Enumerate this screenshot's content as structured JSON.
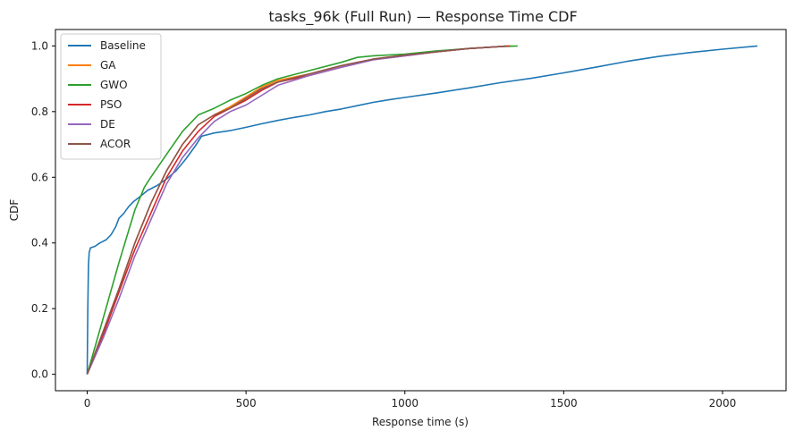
{
  "chart_data": {
    "type": "line",
    "title": "tasks_96k (Full Run) — Response Time CDF",
    "xlabel": "Response time (s)",
    "ylabel": "CDF",
    "xlim": [
      -100,
      2200
    ],
    "ylim": [
      -0.05,
      1.05
    ],
    "xticks": [
      0,
      500,
      1000,
      1500,
      2000
    ],
    "yticks": [
      0.0,
      0.2,
      0.4,
      0.6,
      0.8,
      1.0
    ],
    "xtick_labels": [
      "0",
      "500",
      "1000",
      "1500",
      "2000"
    ],
    "ytick_labels": [
      "0.0",
      "0.2",
      "0.4",
      "0.6",
      "0.8",
      "1.0"
    ],
    "grid": false,
    "legend_position": "upper-left",
    "series": [
      {
        "name": "Baseline",
        "color": "#1f77b4",
        "points": [
          [
            0,
            0.0
          ],
          [
            2,
            0.2
          ],
          [
            4,
            0.33
          ],
          [
            6,
            0.37
          ],
          [
            10,
            0.385
          ],
          [
            25,
            0.39
          ],
          [
            40,
            0.4
          ],
          [
            60,
            0.41
          ],
          [
            75,
            0.425
          ],
          [
            90,
            0.45
          ],
          [
            100,
            0.475
          ],
          [
            115,
            0.49
          ],
          [
            130,
            0.51
          ],
          [
            145,
            0.525
          ],
          [
            165,
            0.54
          ],
          [
            190,
            0.56
          ],
          [
            220,
            0.575
          ],
          [
            250,
            0.595
          ],
          [
            280,
            0.62
          ],
          [
            310,
            0.655
          ],
          [
            340,
            0.695
          ],
          [
            360,
            0.725
          ],
          [
            400,
            0.735
          ],
          [
            450,
            0.742
          ],
          [
            500,
            0.752
          ],
          [
            550,
            0.763
          ],
          [
            600,
            0.773
          ],
          [
            650,
            0.782
          ],
          [
            700,
            0.79
          ],
          [
            750,
            0.8
          ],
          [
            800,
            0.808
          ],
          [
            850,
            0.818
          ],
          [
            900,
            0.828
          ],
          [
            950,
            0.836
          ],
          [
            1000,
            0.843
          ],
          [
            1100,
            0.857
          ],
          [
            1200,
            0.872
          ],
          [
            1300,
            0.888
          ],
          [
            1400,
            0.902
          ],
          [
            1500,
            0.918
          ],
          [
            1600,
            0.935
          ],
          [
            1700,
            0.953
          ],
          [
            1800,
            0.968
          ],
          [
            1900,
            0.98
          ],
          [
            2000,
            0.99
          ],
          [
            2110,
            1.0
          ]
        ]
      },
      {
        "name": "GA",
        "color": "#ff7f0e",
        "points": [
          [
            0,
            0.0
          ],
          [
            50,
            0.13
          ],
          [
            100,
            0.26
          ],
          [
            150,
            0.4
          ],
          [
            200,
            0.52
          ],
          [
            250,
            0.62
          ],
          [
            300,
            0.7
          ],
          [
            350,
            0.76
          ],
          [
            400,
            0.79
          ],
          [
            450,
            0.815
          ],
          [
            500,
            0.845
          ],
          [
            550,
            0.875
          ],
          [
            600,
            0.895
          ],
          [
            700,
            0.915
          ],
          [
            800,
            0.94
          ],
          [
            900,
            0.96
          ],
          [
            1000,
            0.972
          ],
          [
            1100,
            0.982
          ],
          [
            1200,
            0.992
          ],
          [
            1300,
            0.998
          ],
          [
            1340,
            1.0
          ]
        ]
      },
      {
        "name": "GWO",
        "color": "#2ca02c",
        "points": [
          [
            0,
            0.0
          ],
          [
            50,
            0.17
          ],
          [
            100,
            0.34
          ],
          [
            150,
            0.5
          ],
          [
            180,
            0.57
          ],
          [
            200,
            0.6
          ],
          [
            250,
            0.67
          ],
          [
            300,
            0.74
          ],
          [
            350,
            0.79
          ],
          [
            400,
            0.81
          ],
          [
            450,
            0.835
          ],
          [
            500,
            0.855
          ],
          [
            550,
            0.88
          ],
          [
            600,
            0.9
          ],
          [
            700,
            0.925
          ],
          [
            800,
            0.95
          ],
          [
            850,
            0.965
          ],
          [
            900,
            0.97
          ],
          [
            1000,
            0.975
          ],
          [
            1100,
            0.985
          ],
          [
            1200,
            0.992
          ],
          [
            1300,
            0.998
          ],
          [
            1355,
            1.0
          ]
        ]
      },
      {
        "name": "PSO",
        "color": "#d62728",
        "points": [
          [
            0,
            0.0
          ],
          [
            50,
            0.12
          ],
          [
            100,
            0.25
          ],
          [
            150,
            0.38
          ],
          [
            200,
            0.49
          ],
          [
            250,
            0.6
          ],
          [
            300,
            0.68
          ],
          [
            350,
            0.74
          ],
          [
            400,
            0.785
          ],
          [
            450,
            0.81
          ],
          [
            500,
            0.835
          ],
          [
            550,
            0.865
          ],
          [
            600,
            0.89
          ],
          [
            700,
            0.91
          ],
          [
            800,
            0.935
          ],
          [
            900,
            0.958
          ],
          [
            1000,
            0.97
          ],
          [
            1100,
            0.982
          ],
          [
            1200,
            0.992
          ],
          [
            1300,
            0.998
          ],
          [
            1330,
            1.0
          ]
        ]
      },
      {
        "name": "DE",
        "color": "#9467bd",
        "points": [
          [
            0,
            0.0
          ],
          [
            50,
            0.11
          ],
          [
            100,
            0.23
          ],
          [
            150,
            0.36
          ],
          [
            200,
            0.47
          ],
          [
            250,
            0.58
          ],
          [
            300,
            0.66
          ],
          [
            350,
            0.72
          ],
          [
            400,
            0.77
          ],
          [
            450,
            0.8
          ],
          [
            500,
            0.82
          ],
          [
            550,
            0.85
          ],
          [
            600,
            0.88
          ],
          [
            700,
            0.91
          ],
          [
            800,
            0.935
          ],
          [
            900,
            0.958
          ],
          [
            1000,
            0.97
          ],
          [
            1100,
            0.982
          ],
          [
            1200,
            0.992
          ],
          [
            1300,
            0.998
          ],
          [
            1320,
            1.0
          ]
        ]
      },
      {
        "name": "ACOR",
        "color": "#8c564b",
        "points": [
          [
            0,
            0.0
          ],
          [
            50,
            0.13
          ],
          [
            100,
            0.26
          ],
          [
            150,
            0.4
          ],
          [
            200,
            0.52
          ],
          [
            250,
            0.62
          ],
          [
            300,
            0.7
          ],
          [
            350,
            0.76
          ],
          [
            400,
            0.79
          ],
          [
            450,
            0.81
          ],
          [
            500,
            0.84
          ],
          [
            550,
            0.87
          ],
          [
            600,
            0.89
          ],
          [
            700,
            0.915
          ],
          [
            800,
            0.94
          ],
          [
            900,
            0.96
          ],
          [
            1000,
            0.972
          ],
          [
            1100,
            0.982
          ],
          [
            1200,
            0.992
          ],
          [
            1300,
            0.998
          ],
          [
            1320,
            1.0
          ]
        ]
      }
    ]
  }
}
